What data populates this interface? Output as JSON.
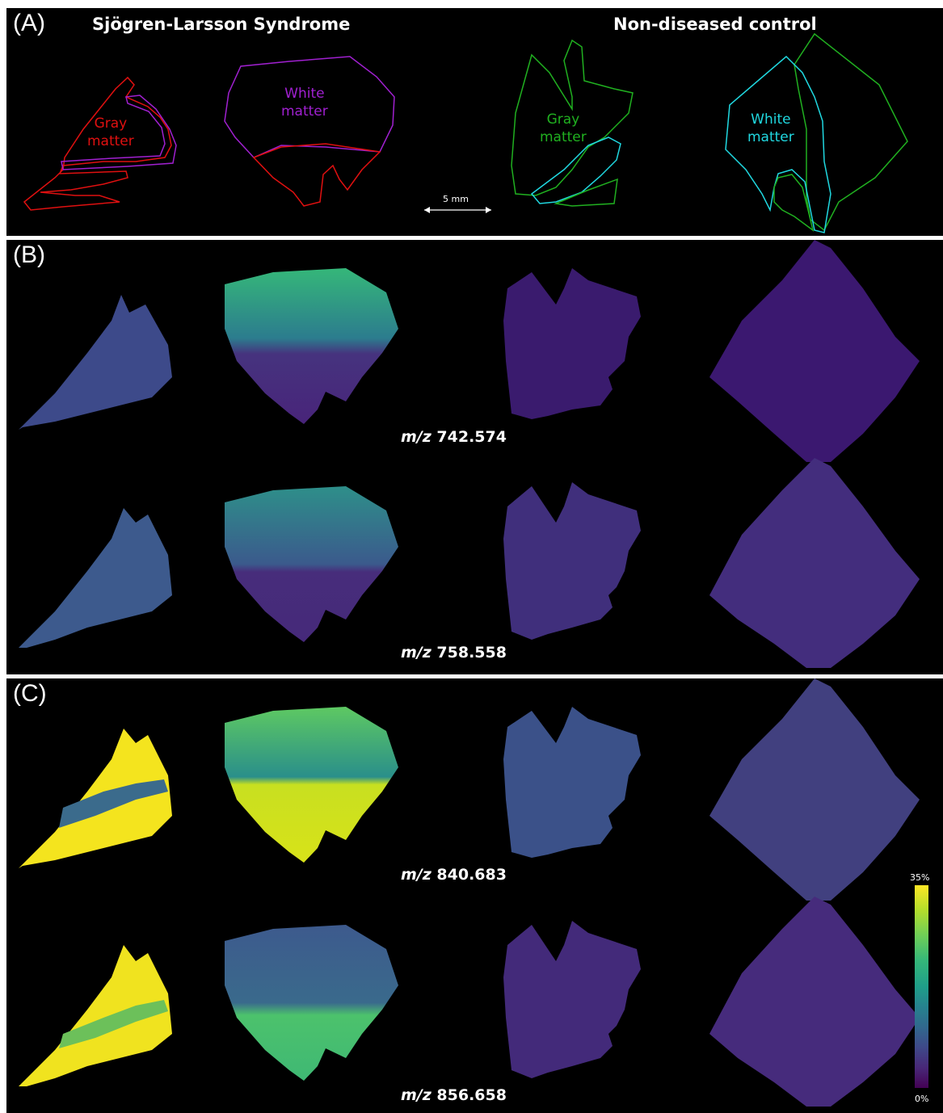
{
  "panel_labels": {
    "a": "(A)",
    "b": "(B)",
    "c": "(C)"
  },
  "headers": {
    "sls": "Sjögren-Larsson Syndrome",
    "control": "Non-diseased control"
  },
  "regions": {
    "sls_gray": [
      "Gray",
      "matter"
    ],
    "sls_white": [
      "White",
      "matter"
    ],
    "ctrl_gray": [
      "Gray",
      "matter"
    ],
    "ctrl_white": [
      "White",
      "matter"
    ]
  },
  "scale_bar": "5 mm",
  "mz_prefix": "m/z",
  "mz_values": {
    "b1": "742.574",
    "b2": "758.558",
    "c1": "840.683",
    "c2": "856.658"
  },
  "colorbar": {
    "max": "35%",
    "min": "0%"
  },
  "colors": {
    "sls_outline": "#e01010",
    "sls_white_outline": "#a020d0",
    "ctrl_outline": "#20b020",
    "ctrl_white_outline": "#20d8e0",
    "low": "#440154",
    "mid": "#31688e",
    "high": "#fde725"
  }
}
